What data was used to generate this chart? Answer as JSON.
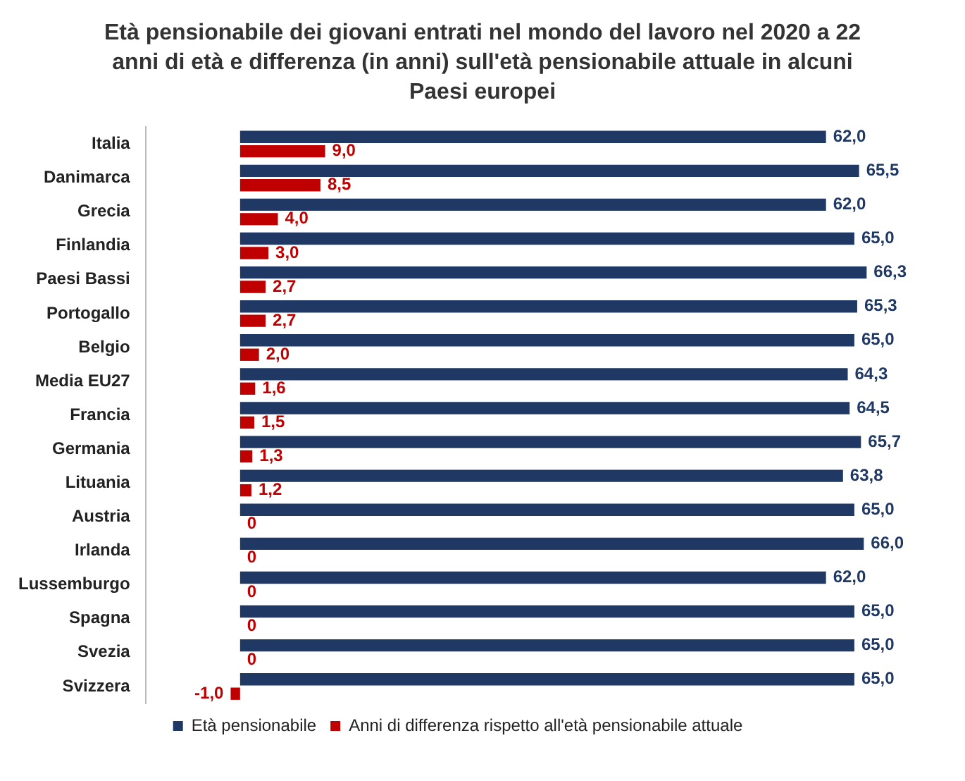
{
  "chart_data": {
    "type": "bar",
    "orientation": "horizontal",
    "title": "Età pensionabile dei giovani entrati nel mondo del lavoro nel 2020 a 22 anni di età e differenza (in anni) sull'età pensionabile attuale in alcuni Paesi europei",
    "categories": [
      "Italia",
      "Danimarca",
      "Grecia",
      "Finlandia",
      "Paesi Bassi",
      "Portogallo",
      "Belgio",
      "Media EU27",
      "Francia",
      "Germania",
      "Lituania",
      "Austria",
      "Irlanda",
      "Lussemburgo",
      "Spagna",
      "Svezia",
      "Svizzera"
    ],
    "series": [
      {
        "name": "Età pensionabile",
        "color": "#203864",
        "values": [
          62.0,
          65.5,
          62.0,
          65.0,
          66.3,
          65.3,
          65.0,
          64.3,
          64.5,
          65.7,
          63.8,
          65.0,
          66.0,
          62.0,
          65.0,
          65.0,
          65.0
        ],
        "value_labels": [
          "62,0",
          "65,5",
          "62,0",
          "65,0",
          "66,3",
          "65,3",
          "65,0",
          "64,3",
          "64,5",
          "65,7",
          "63,8",
          "65,0",
          "66,0",
          "62,0",
          "65,0",
          "65,0",
          "65,0"
        ]
      },
      {
        "name": "Anni di differenza rispetto all'età pensionabile attuale",
        "color": "#c00000",
        "values": [
          9.0,
          8.5,
          4.0,
          3.0,
          2.7,
          2.7,
          2.0,
          1.6,
          1.5,
          1.3,
          1.2,
          0,
          0,
          0,
          0,
          0,
          -1.0
        ],
        "value_labels": [
          "9,0",
          "8,5",
          "4,0",
          "3,0",
          "2,7",
          "2,7",
          "2,0",
          "1,6",
          "1,5",
          "1,3",
          "1,2",
          "0",
          "0",
          "0",
          "0",
          "0",
          "-1,0"
        ]
      }
    ],
    "tick_labels": "y",
    "grid": false,
    "legend": "bottom"
  }
}
